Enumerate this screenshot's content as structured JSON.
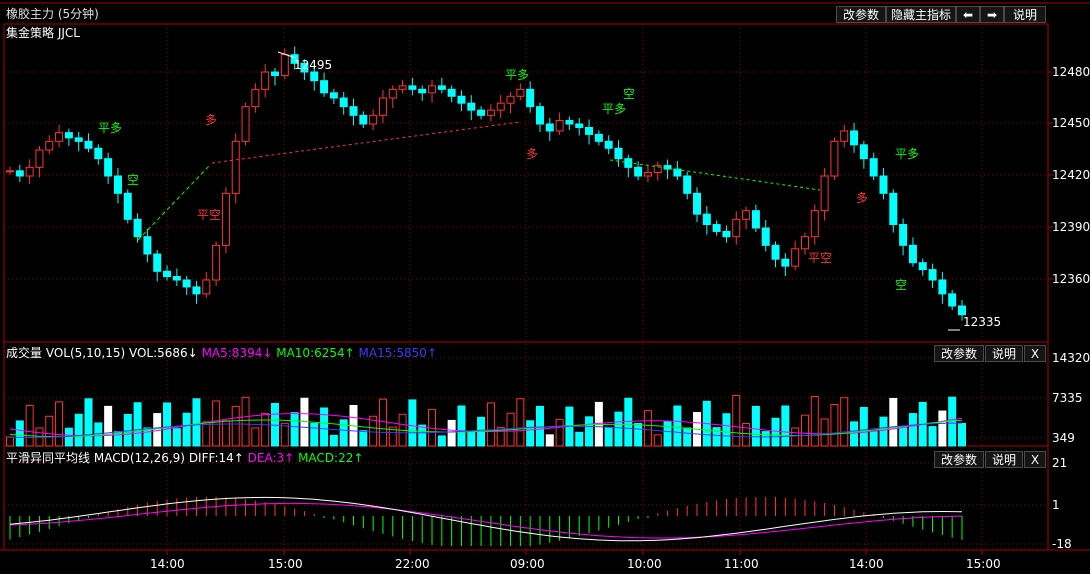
{
  "main_panel": {
    "title": "橡胶主力 (5分钟)",
    "strategy": "集金策略 JJCL",
    "buttons": {
      "params": "改参数",
      "hide": "隐藏主指标",
      "prev": "⬅",
      "next": "➡",
      "help": "说明"
    },
    "price_ticks": [
      "12480",
      "12450",
      "12420",
      "12390",
      "12360"
    ],
    "annot_high": "12495",
    "annot_low": "12335"
  },
  "volume_panel": {
    "label": "成交量",
    "vol_name": "VOL(5,10,15)",
    "vol_value": "VOL:5686↓",
    "ma5": "MA5:8394↓",
    "ma10": "MA10:6254↑",
    "ma15": "MA15:5850↑",
    "ticks": [
      "14320",
      "7335",
      "349"
    ],
    "buttons": {
      "params": "改参数",
      "help": "说明",
      "close": "X"
    }
  },
  "macd_panel": {
    "label": "平滑异同平均线",
    "macd_name": "MACD(12,26,9)",
    "diff": "DIFF:14↑",
    "dea": "DEA:3↑",
    "macd": "MACD:22↑",
    "ticks": [
      "21",
      "1",
      "-18"
    ],
    "buttons": {
      "params": "改参数",
      "help": "说明",
      "close": "X"
    }
  },
  "time_axis": [
    "14:00",
    "15:00",
    "22:00",
    "09:00",
    "10:00",
    "11:00",
    "14:00",
    "15:00"
  ],
  "signals": {
    "ping_duo": "平多",
    "kong": "空",
    "duo": "多",
    "ping_kong": "平空"
  },
  "colors": {
    "up": "#ff3232",
    "down": "#00ffff",
    "ma5": "#ff00ff",
    "ma10": "#00ff00",
    "ma15": "#3a3aff",
    "diff": "#ffffff",
    "dea": "#ff00ff",
    "grid": "#8b0000",
    "axis": "#b00000",
    "signal_green": "#00ff00",
    "signal_red": "#ff3232"
  }
}
